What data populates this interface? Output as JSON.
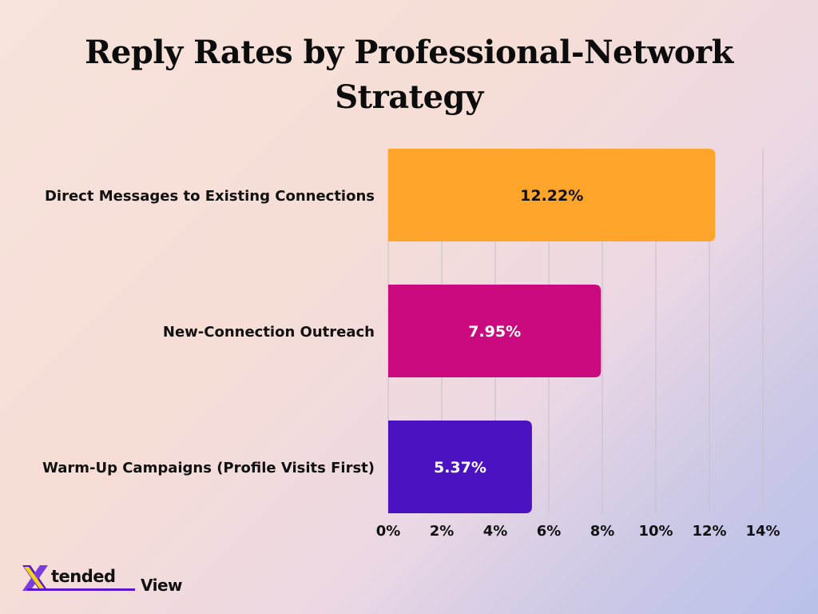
{
  "chart_data": {
    "type": "bar",
    "orientation": "horizontal",
    "title": "Reply Rates by Professional-Network Strategy",
    "title_lines": [
      "Reply Rates by Professional-Network",
      "Strategy"
    ],
    "categories": [
      "Direct Messages to Existing Connections",
      "New-Connection Outreach",
      "Warm-Up Campaigns (Profile Visits First)"
    ],
    "values": [
      12.22,
      7.95,
      5.37
    ],
    "value_labels": [
      "12.22%",
      "7.95%",
      "5.37%"
    ],
    "colors": [
      "#ffa52b",
      "#cc0a7f",
      "#4a12c1"
    ],
    "label_colors": [
      "#111111",
      "#ffffff",
      "#ffffff"
    ],
    "xlim": [
      0,
      14
    ],
    "x_ticks": [
      0,
      2,
      4,
      6,
      8,
      10,
      12,
      14
    ],
    "x_tick_labels": [
      "0%",
      "2%",
      "4%",
      "6%",
      "8%",
      "10%",
      "12%",
      "14%"
    ],
    "grid": true,
    "legend": "none"
  },
  "logo": {
    "text_main": "tended",
    "text_suffix": "View",
    "brand_color": "#5b17c9"
  }
}
